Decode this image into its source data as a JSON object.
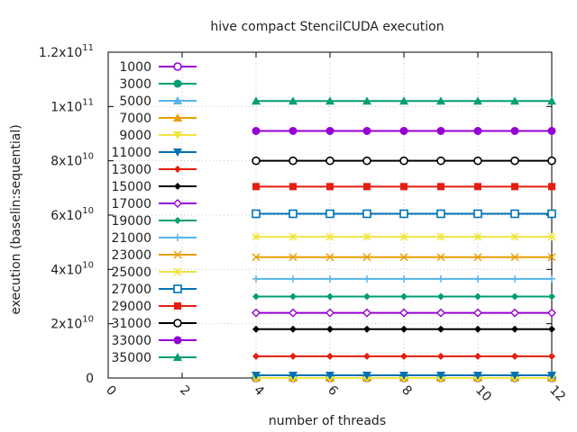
{
  "chart_data": {
    "type": "line",
    "title": "hive compact StencilCUDA execution",
    "xlabel": "number of threads",
    "ylabel": "execution (baselin:sequential)",
    "xlim": [
      0,
      12
    ],
    "ylim": [
      0,
      120000000000
    ],
    "x_ticks": [
      0,
      2,
      4,
      6,
      8,
      10,
      12
    ],
    "x_tick_labels": [
      "0",
      "2",
      "4",
      "6",
      "8",
      "10",
      "12"
    ],
    "y_ticks": [
      0,
      20000000000,
      40000000000,
      60000000000,
      80000000000,
      100000000000,
      120000000000
    ],
    "y_tick_base": [
      "0",
      "2x10",
      "4x10",
      "6x10",
      "8x10",
      "1x10",
      "1.2x10"
    ],
    "y_tick_exp": [
      "",
      "10",
      "10",
      "10",
      "10",
      "11",
      "11"
    ],
    "grid": true,
    "legend_position": "top-left",
    "x": [
      4,
      5,
      6,
      7,
      8,
      9,
      10,
      11,
      12
    ],
    "series": [
      {
        "name": "1000",
        "color": "#9400d3",
        "marker": "circle-open",
        "values": [
          0,
          0,
          0,
          0,
          0,
          0,
          0,
          0,
          0
        ]
      },
      {
        "name": "3000",
        "color": "#009e73",
        "marker": "circle-filled",
        "values": [
          0,
          0,
          0,
          0,
          0,
          0,
          0,
          0,
          0
        ]
      },
      {
        "name": "5000",
        "color": "#56b4e9",
        "marker": "triangle-up",
        "values": [
          0,
          0,
          0,
          0,
          0,
          0,
          0,
          0,
          0
        ]
      },
      {
        "name": "7000",
        "color": "#e69f00",
        "marker": "triangle-up",
        "values": [
          0,
          0,
          0,
          0,
          0,
          0,
          0,
          0,
          0
        ]
      },
      {
        "name": "9000",
        "color": "#f0e442",
        "marker": "triangle-down",
        "values": [
          0,
          0,
          0,
          0,
          0,
          0,
          0,
          0,
          0
        ]
      },
      {
        "name": "11000",
        "color": "#0072b2",
        "marker": "triangle-down",
        "values": [
          1000000000,
          1000000000,
          1000000000,
          1000000000,
          1000000000,
          1000000000,
          1000000000,
          1000000000,
          1000000000
        ]
      },
      {
        "name": "13000",
        "color": "#e51e10",
        "marker": "diamond",
        "values": [
          8000000000,
          8000000000,
          8000000000,
          8000000000,
          8000000000,
          8000000000,
          8000000000,
          8000000000,
          8000000000
        ]
      },
      {
        "name": "15000",
        "color": "#000000",
        "marker": "diamond",
        "values": [
          18000000000,
          18000000000,
          18000000000,
          18000000000,
          18000000000,
          18000000000,
          18000000000,
          18000000000,
          18000000000
        ]
      },
      {
        "name": "17000",
        "color": "#9400d3",
        "marker": "diamond-open",
        "values": [
          24000000000,
          24000000000,
          24000000000,
          24000000000,
          24000000000,
          24000000000,
          24000000000,
          24000000000,
          24000000000
        ]
      },
      {
        "name": "19000",
        "color": "#009e73",
        "marker": "diamond",
        "values": [
          30000000000,
          30000000000,
          30000000000,
          30000000000,
          30000000000,
          30000000000,
          30000000000,
          30000000000,
          30000000000
        ]
      },
      {
        "name": "21000",
        "color": "#56b4e9",
        "marker": "plus",
        "values": [
          36500000000,
          36500000000,
          36500000000,
          36500000000,
          36500000000,
          36500000000,
          36500000000,
          36500000000,
          36500000000
        ]
      },
      {
        "name": "23000",
        "color": "#e69f00",
        "marker": "cross",
        "values": [
          44500000000,
          44500000000,
          44500000000,
          44500000000,
          44500000000,
          44500000000,
          44500000000,
          44500000000,
          44500000000
        ]
      },
      {
        "name": "25000",
        "color": "#f0e442",
        "marker": "star",
        "values": [
          52000000000,
          52000000000,
          52000000000,
          52000000000,
          52000000000,
          52000000000,
          52000000000,
          52000000000,
          52000000000
        ]
      },
      {
        "name": "27000",
        "color": "#0072b2",
        "marker": "square-open",
        "values": [
          60500000000,
          60500000000,
          60500000000,
          60500000000,
          60500000000,
          60500000000,
          60500000000,
          60500000000,
          60500000000
        ]
      },
      {
        "name": "29000",
        "color": "#e51e10",
        "marker": "square-filled",
        "values": [
          70500000000,
          70500000000,
          70500000000,
          70500000000,
          70500000000,
          70500000000,
          70500000000,
          70500000000,
          70500000000
        ]
      },
      {
        "name": "31000",
        "color": "#000000",
        "marker": "circle-open",
        "values": [
          80000000000,
          80000000000,
          80000000000,
          80000000000,
          80000000000,
          80000000000,
          80000000000,
          80000000000,
          80000000000
        ]
      },
      {
        "name": "33000",
        "color": "#9400d3",
        "marker": "circle-filled",
        "values": [
          91000000000,
          91000000000,
          91000000000,
          91000000000,
          91000000000,
          91000000000,
          91000000000,
          91000000000,
          91000000000
        ]
      },
      {
        "name": "35000",
        "color": "#009e73",
        "marker": "triangle-up",
        "values": [
          102000000000,
          102000000000,
          102000000000,
          102000000000,
          102000000000,
          102000000000,
          102000000000,
          102000000000,
          102000000000
        ]
      }
    ]
  }
}
